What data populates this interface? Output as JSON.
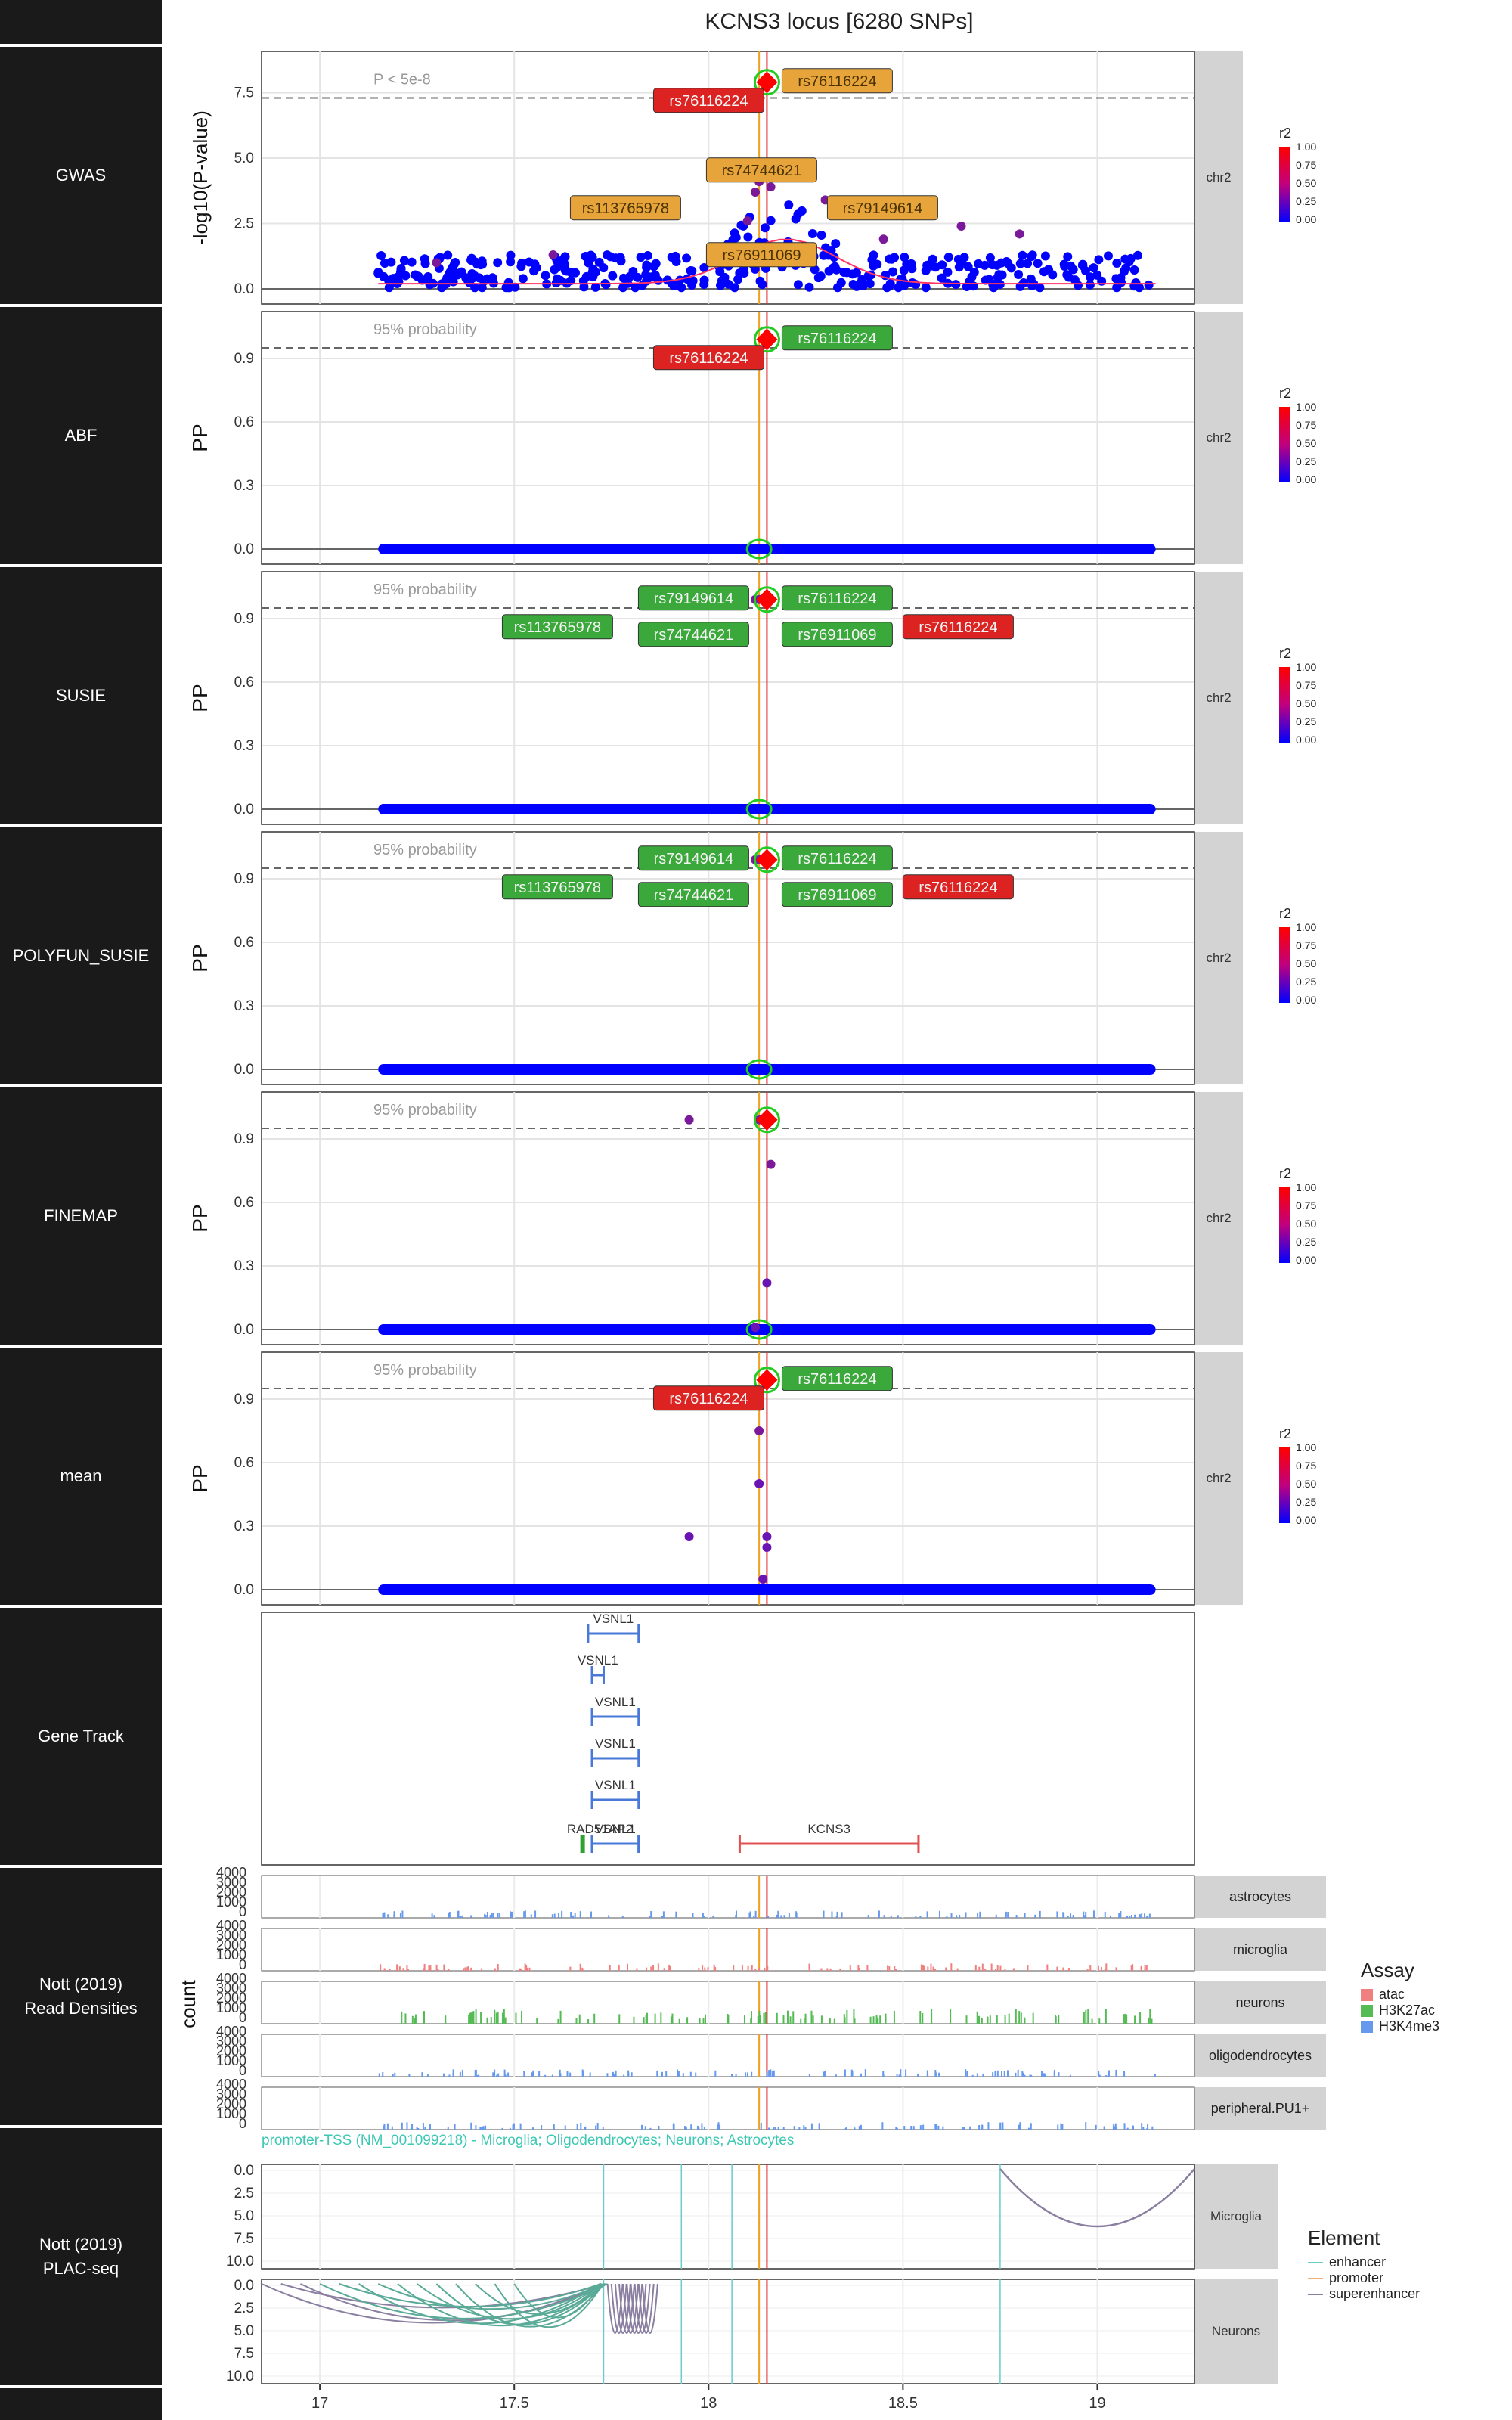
{
  "title": "KCNS3 locus [6280 SNPs]",
  "colors": {
    "snp_blue": "#0000ff",
    "lead_red": "#ff0000",
    "label_orange": "#e6a43a",
    "label_green": "#3aa83a",
    "label_red": "#dd2222",
    "vline_red": "#e03030",
    "vline_orange": "#f0a020",
    "gene_blue": "#4a78d8",
    "gene_red": "#e05050",
    "gene_green": "#30a030",
    "enhancer": "#66cccc",
    "promoter": "#f2b07a",
    "superenhancer": "#8a7fa0",
    "atac": "#f08080",
    "h3k27ac": "#55bb55",
    "h3k4me3": "#6699ee"
  },
  "panels": [
    {
      "id": "gwas",
      "label": "GWAS",
      "strip": "chr2",
      "ylabel": "-log10(P-value)",
      "yticks": [
        "0.0",
        "2.5",
        "5.0",
        "7.5"
      ],
      "threshold_label": "P < 5e-8",
      "snp_labels": [
        "rs76116224",
        "rs76116224",
        "rs74744621",
        "rs113765978",
        "rs79149614",
        "rs76911069"
      ]
    },
    {
      "id": "abf",
      "label": "ABF",
      "strip": "chr2",
      "ylabel": "PP",
      "yticks": [
        "0.0",
        "0.3",
        "0.6",
        "0.9"
      ],
      "threshold_label": "95% probability",
      "snp_labels": [
        "rs76116224",
        "rs76116224"
      ]
    },
    {
      "id": "susie",
      "label": "SUSIE",
      "strip": "chr2",
      "ylabel": "PP",
      "yticks": [
        "0.0",
        "0.3",
        "0.6",
        "0.9"
      ],
      "threshold_label": "95% probability",
      "snp_labels": [
        "rs79149614",
        "rs76116224",
        "rs113765978",
        "rs74744621",
        "rs76911069",
        "rs76116224"
      ]
    },
    {
      "id": "polyfun",
      "label": "POLYFUN_SUSIE",
      "strip": "chr2",
      "ylabel": "PP",
      "yticks": [
        "0.0",
        "0.3",
        "0.6",
        "0.9"
      ],
      "threshold_label": "95% probability",
      "snp_labels": [
        "rs79149614",
        "rs76116224",
        "rs113765978",
        "rs74744621",
        "rs76911069",
        "rs76116224"
      ]
    },
    {
      "id": "finemap",
      "label": "FINEMAP",
      "strip": "chr2",
      "ylabel": "PP",
      "yticks": [
        "0.0",
        "0.3",
        "0.6",
        "0.9"
      ],
      "threshold_label": "95% probability",
      "snp_labels": []
    },
    {
      "id": "mean",
      "label": "mean",
      "strip": "chr2",
      "ylabel": "PP",
      "yticks": [
        "0.0",
        "0.3",
        "0.6",
        "0.9"
      ],
      "threshold_label": "95% probability",
      "snp_labels": [
        "rs76116224",
        "rs76116224"
      ]
    }
  ],
  "gene_track": {
    "label": "Gene Track",
    "genes": [
      "VSNL1",
      "VSNL1",
      "VSNL1",
      "VSNL1",
      "VSNL1",
      "VSNL1",
      "RAD51AP2",
      "KCNS3"
    ]
  },
  "densities": {
    "label_line1": "Nott (2019)",
    "label_line2": "Read Densities",
    "ylabel": "count",
    "yticks": [
      "0",
      "1000",
      "2000",
      "3000",
      "4000"
    ],
    "cell_types": [
      "astrocytes",
      "microglia",
      "neurons",
      "oligodendrocytes",
      "peripheral.PU1+"
    ],
    "legend_title": "Assay",
    "legend_items": [
      "atac",
      "H3K27ac",
      "H3K4me3"
    ]
  },
  "plac": {
    "label_line1": "Nott (2019)",
    "label_line2": "PLAC-seq",
    "caption": "promoter-TSS (NM_001099218) - Microglia; Oligodendrocytes; Neurons; Astrocytes",
    "yticks": [
      "0.0",
      "2.5",
      "5.0",
      "7.5",
      "10.0"
    ],
    "strips": [
      "Microglia",
      "Neurons"
    ],
    "legend_title": "Element",
    "legend_items": [
      "enhancer",
      "promoter",
      "superenhancer"
    ]
  },
  "r2_legend": {
    "title": "r2",
    "ticks": [
      "1.00",
      "0.75",
      "0.50",
      "0.25",
      "0.00"
    ]
  },
  "x_axis": {
    "ticks": [
      "17",
      "17.5",
      "18",
      "18.5",
      "19"
    ]
  },
  "chart_data": [
    {
      "type": "scatter",
      "title": "KCNS3 locus [6280 SNPs]",
      "facets": [
        "GWAS",
        "ABF",
        "SUSIE",
        "POLYFUN_SUSIE",
        "FINEMAP",
        "mean"
      ],
      "xlim": [
        16.85,
        19.25
      ],
      "xticks": [
        17,
        17.5,
        18,
        18.5,
        19
      ],
      "series": [
        {
          "name": "GWAS",
          "ylim": [
            0,
            8.5
          ],
          "lead": {
            "label": "rs76116224",
            "x": 18.15,
            "y": 7.9
          },
          "points": [
            [
              18.12,
              3.7
            ],
            [
              18.13,
              4.1
            ],
            [
              18.3,
              3.4
            ],
            [
              18.12,
              1.2
            ],
            [
              18.16,
              3.9
            ],
            [
              18.1,
              2.6
            ],
            [
              18.25,
              4.8
            ],
            [
              18.65,
              2.4
            ],
            [
              18.8,
              2.1
            ],
            [
              17.6,
              1.3
            ],
            [
              17.3,
              1.0
            ],
            [
              18.45,
              1.9
            ]
          ]
        },
        {
          "name": "ABF",
          "ylim": [
            0,
            1.05
          ],
          "lead": {
            "label": "rs76116224",
            "x": 18.15,
            "y": 0.99
          },
          "points": []
        },
        {
          "name": "SUSIE",
          "ylim": [
            0,
            1.05
          ],
          "lead": {
            "label": "rs76116224",
            "x": 18.15,
            "y": 0.99
          },
          "points": [
            [
              18.12,
              0.99
            ],
            [
              18.13,
              0.99
            ]
          ]
        },
        {
          "name": "POLYFUN_SUSIE",
          "ylim": [
            0,
            1.05
          ],
          "lead": {
            "label": "rs76116224",
            "x": 18.15,
            "y": 0.99
          },
          "points": [
            [
              18.12,
              0.99
            ],
            [
              18.13,
              0.99
            ]
          ]
        },
        {
          "name": "FINEMAP",
          "ylim": [
            0,
            1.05
          ],
          "lead": {
            "label": "rs76116224",
            "x": 18.15,
            "y": 0.99
          },
          "points": [
            [
              17.95,
              0.99
            ],
            [
              18.13,
              0.99
            ],
            [
              18.16,
              0.78
            ],
            [
              18.15,
              0.22
            ],
            [
              18.12,
              0.01
            ]
          ]
        },
        {
          "name": "mean",
          "ylim": [
            0,
            1.05
          ],
          "lead": {
            "label": "rs76116224",
            "x": 18.15,
            "y": 0.99
          },
          "points": [
            [
              17.95,
              0.25
            ],
            [
              18.13,
              0.75
            ],
            [
              18.13,
              0.5
            ],
            [
              18.15,
              0.25
            ],
            [
              18.15,
              0.2
            ],
            [
              18.14,
              0.05
            ]
          ]
        }
      ],
      "threshold_gwas": 7.3,
      "threshold_pp": 0.95
    },
    {
      "type": "bar",
      "title": "",
      "xlabel": "",
      "ylabel": "count",
      "ylim": [
        0,
        4000
      ],
      "categories": [
        "astrocytes",
        "microglia",
        "neurons",
        "oligodendrocytes",
        "peripheral.PU1+"
      ],
      "series": [
        {
          "name": "atac"
        },
        {
          "name": "H3K27ac"
        },
        {
          "name": "H3K4me3"
        }
      ]
    }
  ]
}
